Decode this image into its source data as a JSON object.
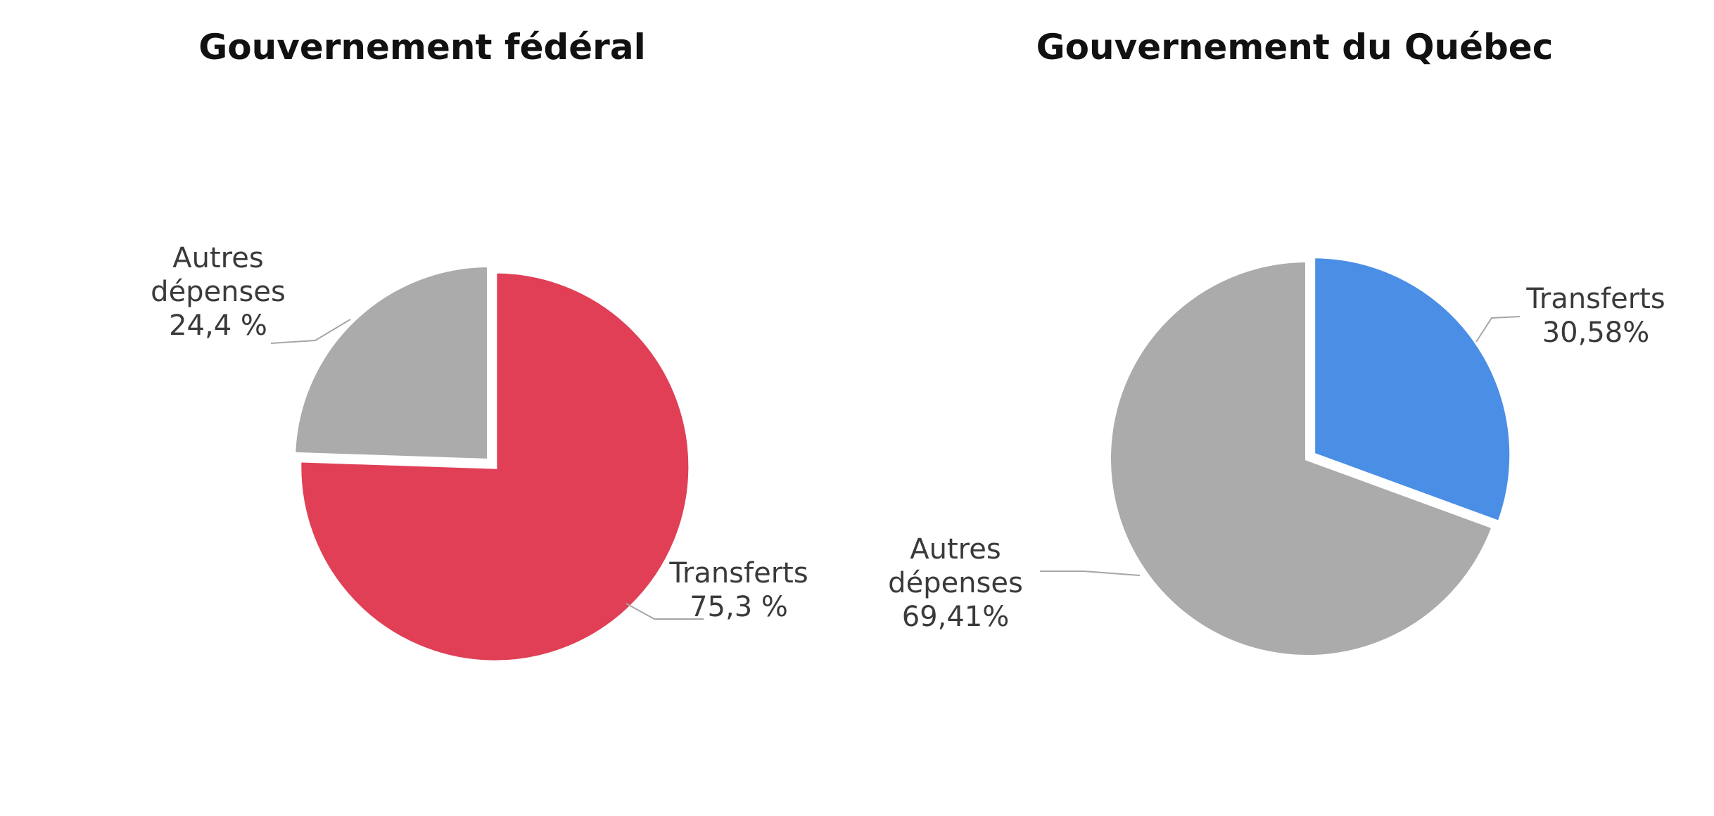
{
  "chart_data": [
    {
      "type": "pie",
      "title": "Gouvernement fédéral",
      "slices": [
        {
          "name": "Transferts",
          "value": 75.3,
          "label": [
            "Transferts",
            "75,3  %"
          ],
          "color": "#e03f56"
        },
        {
          "name": "Autres dépenses",
          "value": 24.4,
          "label": [
            "Autres",
            "dépenses",
            "24,4  %"
          ],
          "color": "#ababab"
        }
      ],
      "start_angle_deg": 0,
      "direction": "clockwise",
      "legend": "none"
    },
    {
      "type": "pie",
      "title": "Gouvernement du Québec",
      "slices": [
        {
          "name": "Transferts",
          "value": 30.58,
          "label": [
            "Transferts",
            "30,58%"
          ],
          "color": "#4a8ee6"
        },
        {
          "name": "Autres dépenses",
          "value": 69.41,
          "label": [
            "Autres",
            "dépenses",
            "69,41%"
          ],
          "color": "#ababab"
        }
      ],
      "start_angle_deg": 0,
      "direction": "clockwise",
      "legend": "none"
    }
  ]
}
